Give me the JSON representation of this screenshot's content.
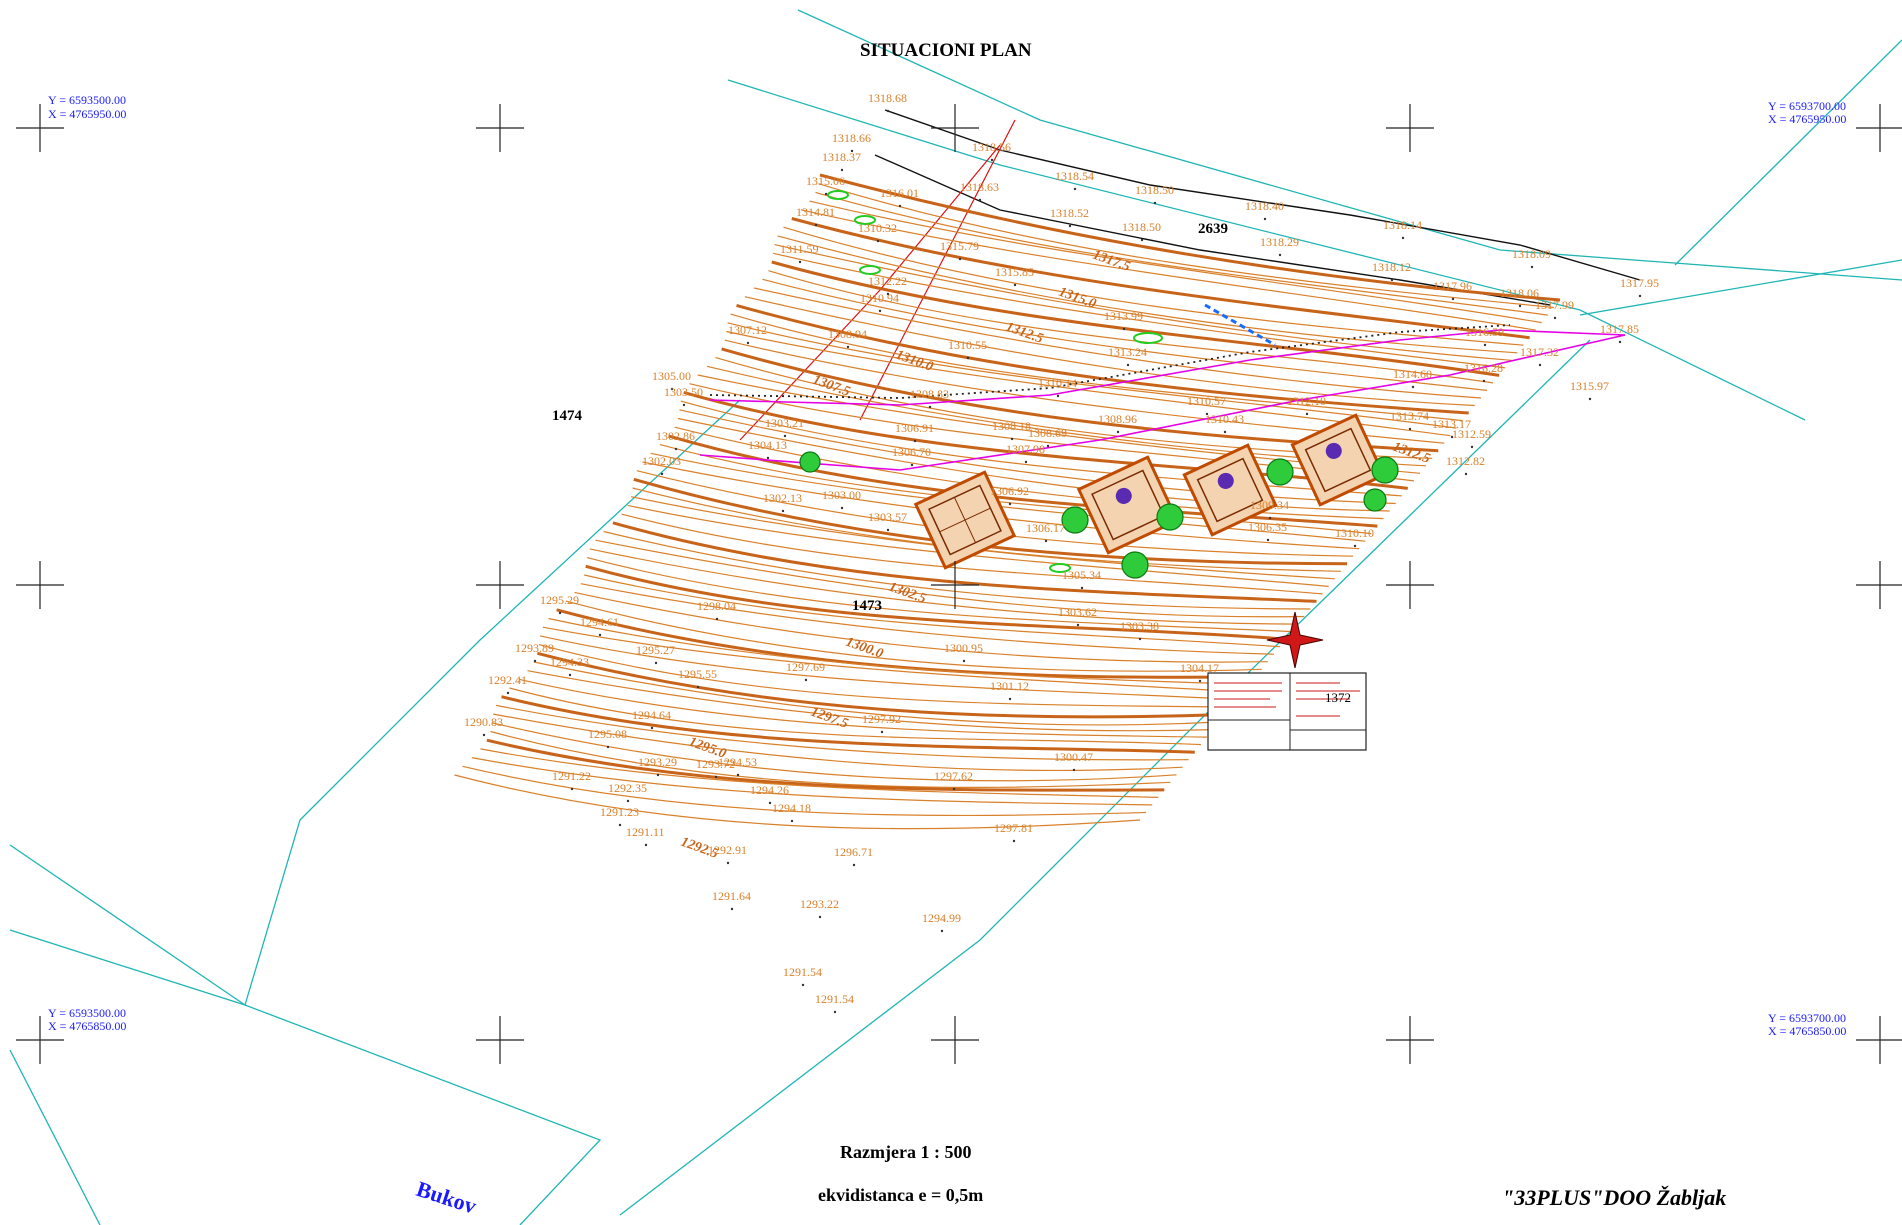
{
  "title": "SITUACIONI PLAN",
  "scale": "Razmjera 1 : 500",
  "equidistance": "ekvidistanca e = 0,5m",
  "company": "\"33PLUS\"DOO Žabljak",
  "river_label": "Bukov",
  "parcels": [
    "1474",
    "1473",
    "2639",
    "1372"
  ],
  "corners": [
    {
      "y": "Y = 6593500.00",
      "x": "X = 4765950.00"
    },
    {
      "y": "Y = 6593700.00",
      "x": "X = 4765950.00"
    },
    {
      "y": "Y = 6593500.00",
      "x": "X = 4765850.00"
    },
    {
      "y": "Y = 6593700.00",
      "x": "X = 4765850.00"
    }
  ],
  "contour_labels": [
    "1317.5",
    "1315.0",
    "1312.5",
    "1310.0",
    "1307.5",
    "1302.5",
    "1300.0",
    "1297.5",
    "1295.0",
    "1292.5",
    "1312.5"
  ],
  "spot_heights": [
    "1318.68",
    "1318.66",
    "1318.37",
    "1318.56",
    "1318.63",
    "1318.54",
    "1318.50",
    "1318.40",
    "1318.14",
    "1318.09",
    "1317.96",
    "1318.06",
    "1317.99",
    "1317.95",
    "1315.06",
    "1314.81",
    "1311.59",
    "1307.12",
    "1305.00",
    "1303.50",
    "1302.86",
    "1302.03",
    "1318.52",
    "1318.50",
    "1318.29",
    "1318.12",
    "1317.85",
    "1316.01",
    "1310.32",
    "1315.79",
    "1315.85",
    "1312.22",
    "1310.94",
    "1308.94",
    "1310.55",
    "1313.99",
    "1313.24",
    "1316.59",
    "1317.32",
    "1316.28",
    "1314.60",
    "1315.97",
    "1313.74",
    "1313.17",
    "1312.59",
    "1312.82",
    "1310.14",
    "1308.83",
    "1306.91",
    "1308.18",
    "1308.69",
    "1308.96",
    "1310.43",
    "1310.57",
    "1312.10",
    "1304.13",
    "1303.21",
    "1306.70",
    "1307.98",
    "1303.00",
    "1302.13",
    "1303.57",
    "1306.92",
    "1306.17",
    "1305.34",
    "1303.62",
    "1303.38",
    "1300.95",
    "1301.12",
    "1304.17",
    "1306.35",
    "1309.34",
    "1310.10",
    "1298.04",
    "1295.29",
    "1294.61",
    "1293.89",
    "1294.33",
    "1295.27",
    "1295.55",
    "1297.69",
    "1297.92",
    "1292.41",
    "1290.83",
    "1294.64",
    "1295.08",
    "1293.29",
    "1293.72",
    "1294.53",
    "1294.26",
    "1294.18",
    "1297.62",
    "1291.22",
    "1292.35",
    "1291.23",
    "1291.11",
    "1292.91",
    "1296.71",
    "1300.47",
    "1297.81",
    "1291.64",
    "1293.22",
    "1294.99",
    "1291.54",
    "1291.54"
  ],
  "colors": {
    "contour": "#d9802a",
    "contour_major": "#c8641a",
    "boundary": "#1fb5b5",
    "road": "#e600e6",
    "coord": "#1a1aff",
    "building": "#c04a00",
    "tree": "#1fbf2a"
  }
}
